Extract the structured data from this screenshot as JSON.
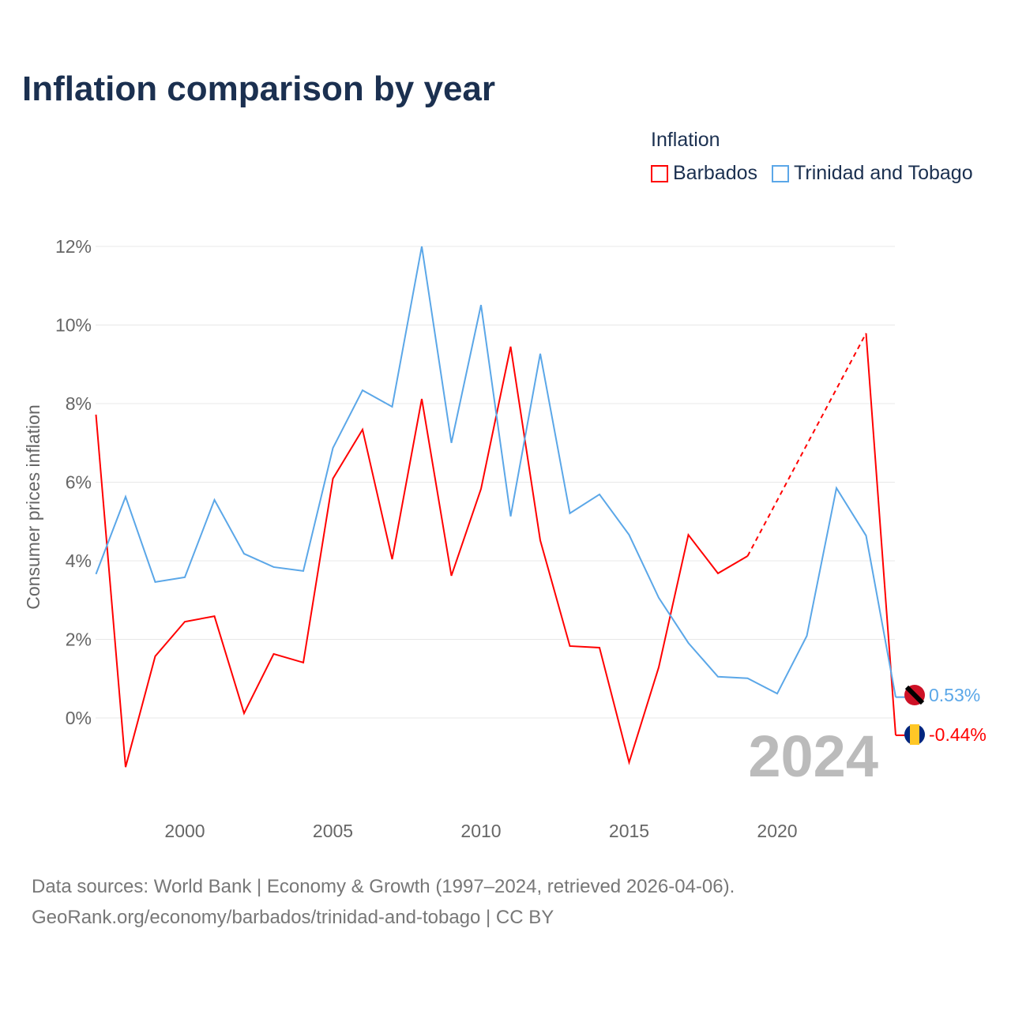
{
  "chart_data": {
    "type": "line",
    "title": "Inflation comparison by year",
    "legend_title": "Inflation",
    "ylabel": "Consumer prices inflation",
    "xlabel": "",
    "ylim": [
      -2,
      12
    ],
    "xlim": [
      1997,
      2024
    ],
    "yticks": [
      0,
      2,
      4,
      6,
      8,
      10,
      12
    ],
    "ytick_labels": [
      "0%",
      "2%",
      "4%",
      "6%",
      "8%",
      "10%",
      "12%"
    ],
    "xticks": [
      2000,
      2005,
      2010,
      2015,
      2020
    ],
    "xtick_labels": [
      "2000",
      "2005",
      "2010",
      "2015",
      "2020"
    ],
    "year_watermark": "2024",
    "x": [
      1997,
      1998,
      1999,
      2000,
      2001,
      2002,
      2003,
      2004,
      2005,
      2006,
      2007,
      2008,
      2009,
      2010,
      2011,
      2012,
      2013,
      2014,
      2015,
      2016,
      2017,
      2018,
      2019,
      2020,
      2021,
      2022,
      2023,
      2024
    ],
    "series": [
      {
        "name": "Barbados",
        "color": "#ff0000",
        "end_label": "-0.44%",
        "values": [
          7.72,
          -1.25,
          1.57,
          2.45,
          2.59,
          0.12,
          1.63,
          1.41,
          6.09,
          7.34,
          4.04,
          8.12,
          3.62,
          5.83,
          9.45,
          4.52,
          1.83,
          1.79,
          -1.13,
          1.29,
          4.66,
          3.68,
          4.12,
          null,
          null,
          null,
          9.79,
          -0.44
        ]
      },
      {
        "name": "Trinidad and Tobago",
        "color": "#5ba7e8",
        "end_label": "0.53%",
        "values": [
          3.66,
          5.63,
          3.46,
          3.58,
          5.55,
          4.18,
          3.84,
          3.74,
          6.87,
          8.34,
          7.92,
          12.0,
          7.0,
          10.51,
          5.13,
          9.27,
          5.21,
          5.69,
          4.66,
          3.06,
          1.91,
          1.05,
          1.01,
          0.62,
          2.09,
          5.85,
          4.64,
          0.53
        ]
      }
    ]
  },
  "footer": {
    "line1": "Data sources: World Bank | Economy & Growth (1997–2024, retrieved 2026-04-06).",
    "line2": "GeoRank.org/economy/barbados/trinidad-and-tobago | CC BY"
  }
}
